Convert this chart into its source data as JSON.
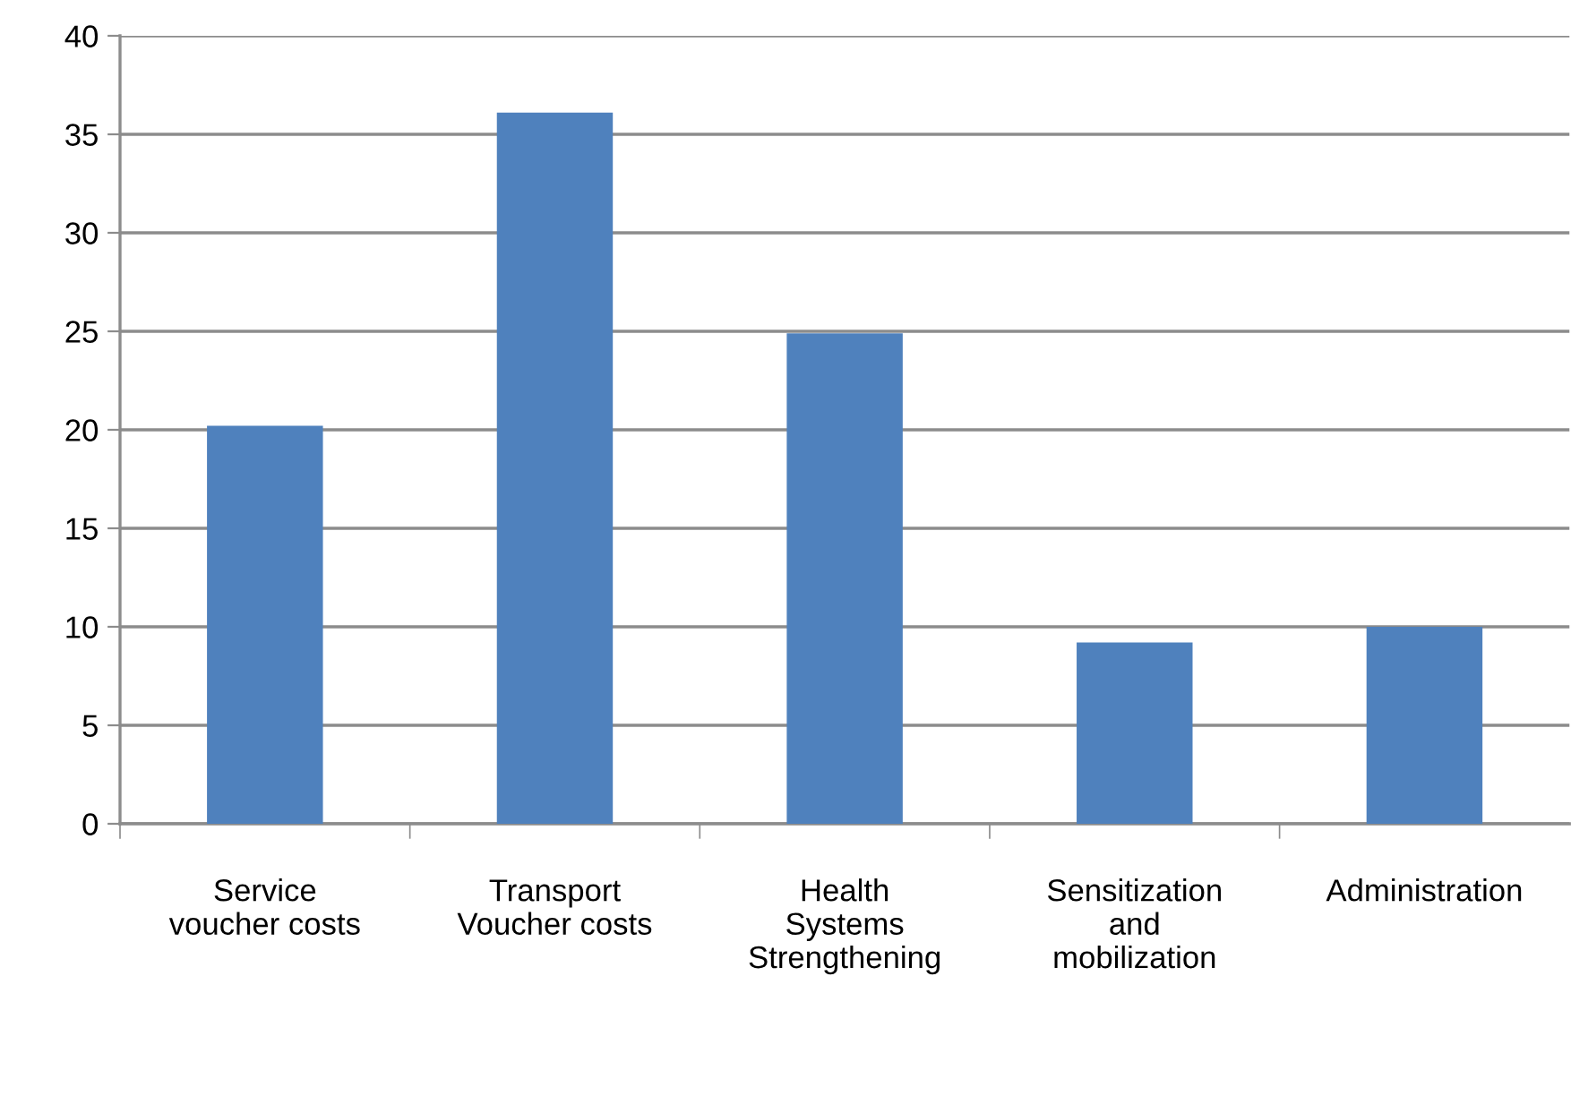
{
  "chart_data": {
    "type": "bar",
    "categories": [
      "Service\nvoucher costs",
      "Transport\nVoucher costs",
      "Health\nSystems\nStrengthening",
      "Sensitization\nand\nmobilization",
      "Administration"
    ],
    "values": [
      20.2,
      36.1,
      24.9,
      9.2,
      10
    ],
    "color": "#4f81bd",
    "ylim": [
      0,
      40
    ],
    "yticks": [
      0,
      5,
      10,
      15,
      20,
      25,
      30,
      35,
      40
    ],
    "grid": "y",
    "legend": false
  }
}
